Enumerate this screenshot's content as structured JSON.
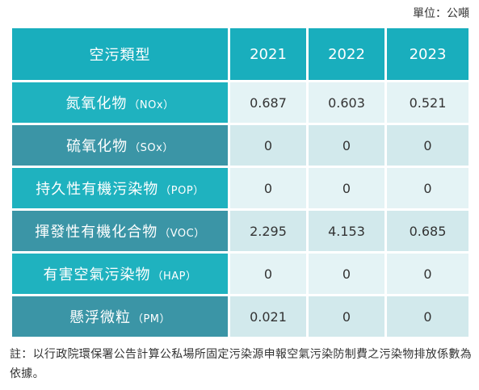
{
  "unit_label": "單位：公噸",
  "table": {
    "header": {
      "type_label": "空污類型",
      "years": [
        "2021",
        "2022",
        "2023"
      ]
    },
    "rows": [
      {
        "name": "氮氧化物",
        "abbr": "（NOx）",
        "values": [
          "0.687",
          "0.603",
          "0.521"
        ]
      },
      {
        "name": "硫氧化物",
        "abbr": "（SOx）",
        "values": [
          "0",
          "0",
          "0"
        ]
      },
      {
        "name": "持久性有機污染物",
        "abbr": "（POP）",
        "values": [
          "0",
          "0",
          "0"
        ]
      },
      {
        "name": "揮發性有機化合物",
        "abbr": "（VOC）",
        "values": [
          "2.295",
          "4.153",
          "0.685"
        ]
      },
      {
        "name": "有害空氣污染物",
        "abbr": "（HAP）",
        "values": [
          "0",
          "0",
          "0"
        ]
      },
      {
        "name": "懸浮微粒",
        "abbr": "（PM）",
        "values": [
          "0.021",
          "0",
          "0"
        ]
      }
    ]
  },
  "note": "註：以行政院環保署公告計算公私場所固定污染源申報空氣污染防制費之污染物排放係數為依據。"
}
